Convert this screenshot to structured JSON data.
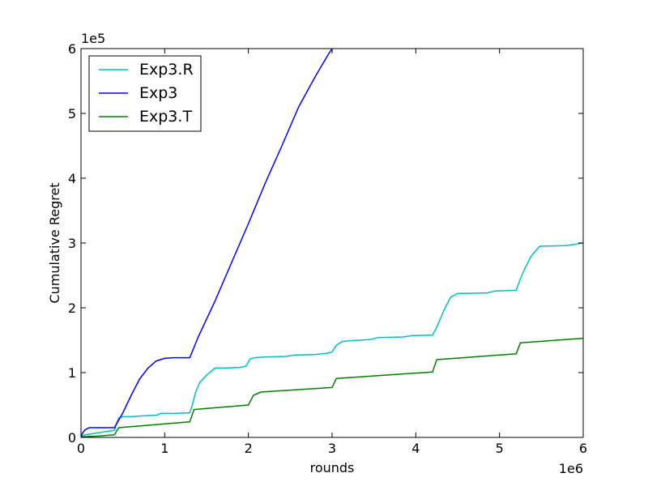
{
  "chart_data": {
    "type": "line",
    "title": "",
    "xlabel": "rounds",
    "ylabel": "Cumulative Regret",
    "x_multiplier_label": "1e6",
    "y_multiplier_label": "1e5",
    "xlim": [
      0,
      6
    ],
    "ylim": [
      0,
      6
    ],
    "x_unit_scale": 1000000,
    "y_unit_scale": 100000,
    "x_ticks": [
      0,
      1,
      2,
      3,
      4,
      5,
      6
    ],
    "x_tick_labels": [
      "0",
      "1",
      "2",
      "3",
      "4",
      "5",
      "6"
    ],
    "y_ticks": [
      0,
      1,
      2,
      3,
      4,
      5,
      6
    ],
    "y_tick_labels": [
      "0",
      "1",
      "2",
      "3",
      "4",
      "5",
      "6"
    ],
    "grid": false,
    "legend_position": "top-left",
    "series": [
      {
        "name": "Exp3.R",
        "color": "#00bfbf",
        "points": [
          [
            0,
            0.02
          ],
          [
            0.05,
            0.04
          ],
          [
            0.1,
            0.05
          ],
          [
            0.2,
            0.07
          ],
          [
            0.3,
            0.09
          ],
          [
            0.4,
            0.11
          ],
          [
            0.42,
            0.2
          ],
          [
            0.45,
            0.3
          ],
          [
            0.5,
            0.32
          ],
          [
            0.6,
            0.32
          ],
          [
            0.7,
            0.33
          ],
          [
            0.85,
            0.34
          ],
          [
            0.9,
            0.34
          ],
          [
            0.95,
            0.37
          ],
          [
            1.0,
            0.37
          ],
          [
            1.1,
            0.37
          ],
          [
            1.3,
            0.38
          ],
          [
            1.33,
            0.5
          ],
          [
            1.37,
            0.7
          ],
          [
            1.42,
            0.85
          ],
          [
            1.5,
            0.96
          ],
          [
            1.6,
            1.07
          ],
          [
            1.7,
            1.07
          ],
          [
            1.9,
            1.08
          ],
          [
            1.97,
            1.1
          ],
          [
            2.02,
            1.21
          ],
          [
            2.07,
            1.23
          ],
          [
            2.2,
            1.24
          ],
          [
            2.45,
            1.25
          ],
          [
            2.55,
            1.27
          ],
          [
            2.8,
            1.28
          ],
          [
            2.95,
            1.3
          ],
          [
            3.0,
            1.32
          ],
          [
            3.05,
            1.42
          ],
          [
            3.12,
            1.48
          ],
          [
            3.2,
            1.49
          ],
          [
            3.45,
            1.51
          ],
          [
            3.55,
            1.54
          ],
          [
            3.85,
            1.55
          ],
          [
            3.95,
            1.57
          ],
          [
            4.2,
            1.58
          ],
          [
            4.25,
            1.7
          ],
          [
            4.3,
            1.85
          ],
          [
            4.35,
            2.0
          ],
          [
            4.42,
            2.17
          ],
          [
            4.5,
            2.22
          ],
          [
            4.85,
            2.23
          ],
          [
            4.95,
            2.26
          ],
          [
            5.2,
            2.27
          ],
          [
            5.25,
            2.45
          ],
          [
            5.3,
            2.6
          ],
          [
            5.38,
            2.8
          ],
          [
            5.48,
            2.95
          ],
          [
            5.8,
            2.96
          ],
          [
            6.0,
            3.0
          ]
        ]
      },
      {
        "name": "Exp3",
        "color": "#0000ff",
        "points": [
          [
            0,
            0.02
          ],
          [
            0.02,
            0.07
          ],
          [
            0.05,
            0.12
          ],
          [
            0.1,
            0.15
          ],
          [
            0.2,
            0.15
          ],
          [
            0.3,
            0.15
          ],
          [
            0.4,
            0.15
          ],
          [
            0.5,
            0.38
          ],
          [
            0.6,
            0.65
          ],
          [
            0.7,
            0.9
          ],
          [
            0.8,
            1.07
          ],
          [
            0.9,
            1.18
          ],
          [
            1.0,
            1.22
          ],
          [
            1.1,
            1.23
          ],
          [
            1.3,
            1.23
          ],
          [
            1.4,
            1.55
          ],
          [
            1.6,
            2.1
          ],
          [
            1.8,
            2.7
          ],
          [
            2.0,
            3.3
          ],
          [
            2.2,
            3.92
          ],
          [
            2.4,
            4.5
          ],
          [
            2.6,
            5.1
          ],
          [
            2.8,
            5.57
          ],
          [
            2.95,
            5.9
          ],
          [
            3.0,
            6.0
          ]
        ]
      },
      {
        "name": "Exp3.T",
        "color": "#008000",
        "points": [
          [
            0,
            0.01
          ],
          [
            0.2,
            0.02
          ],
          [
            0.4,
            0.04
          ],
          [
            0.45,
            0.15
          ],
          [
            1.3,
            0.24
          ],
          [
            1.35,
            0.43
          ],
          [
            2.0,
            0.5
          ],
          [
            2.06,
            0.65
          ],
          [
            2.15,
            0.7
          ],
          [
            3.0,
            0.77
          ],
          [
            3.05,
            0.91
          ],
          [
            4.2,
            1.01
          ],
          [
            4.25,
            1.2
          ],
          [
            5.2,
            1.29
          ],
          [
            5.25,
            1.46
          ],
          [
            6.0,
            1.53
          ]
        ]
      }
    ]
  }
}
